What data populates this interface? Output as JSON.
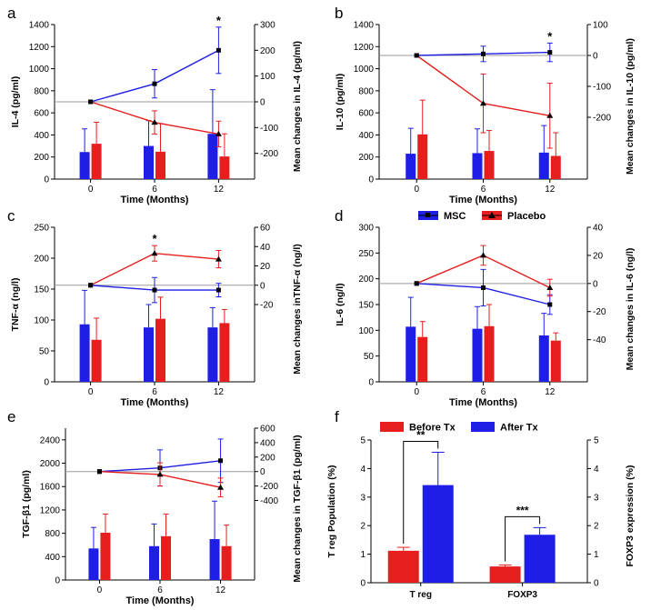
{
  "colors": {
    "msc": "#1e1ee6",
    "placebo": "#e61e1e",
    "axis": "#000000",
    "ref_line": "#9a9a9a"
  },
  "legend_cd": {
    "msc": "MSC",
    "placebo": "Placebo"
  },
  "chart_data": [
    {
      "panel": "a",
      "type": "bar+line",
      "xlabel": "Time (Months)",
      "ylabel": "IL-4 (pg/ml)",
      "y2label": "Mean changes in IL-4 (pg/ml)",
      "categories": [
        "0",
        "6",
        "12"
      ],
      "ylim": [
        0,
        1400
      ],
      "yticks": [
        0,
        200,
        400,
        600,
        800,
        1000,
        1200,
        1400
      ],
      "y2lim": [
        -300,
        300
      ],
      "y2ticks": [
        "-200",
        "-100",
        "0",
        "100",
        "200",
        "300"
      ],
      "bars": {
        "msc": [
          245,
          300,
          410
        ],
        "placebo": [
          320,
          248,
          205
        ]
      },
      "bar_err": {
        "msc": [
          210,
          230,
          400
        ],
        "placebo": [
          195,
          255,
          205
        ]
      },
      "lines": {
        "msc": [
          0,
          70,
          200
        ],
        "placebo": [
          0,
          -80,
          -125
        ]
      },
      "line_err": {
        "msc": [
          0,
          55,
          90
        ],
        "placebo": [
          0,
          45,
          50
        ]
      },
      "annotations": [
        {
          "text": "*",
          "x": "12"
        }
      ]
    },
    {
      "panel": "b",
      "type": "bar+line",
      "xlabel": "Time (Months)",
      "ylabel": "IL-10 (pg/ml)",
      "y2label": "Mean changes in IL-10 (pg/ml)",
      "categories": [
        "0",
        "6",
        "12"
      ],
      "ylim": [
        0,
        1400
      ],
      "yticks": [
        0,
        200,
        400,
        600,
        800,
        1000,
        1200,
        1400
      ],
      "y2lim": [
        -400,
        100
      ],
      "y2ticks": [
        "-200",
        "-100",
        "0",
        "100"
      ],
      "bars": {
        "msc": [
          230,
          235,
          240
        ],
        "placebo": [
          405,
          255,
          210
        ]
      },
      "bar_err": {
        "msc": [
          230,
          220,
          245
        ],
        "placebo": [
          310,
          185,
          210
        ]
      },
      "lines": {
        "msc": [
          0,
          5,
          10
        ],
        "placebo": [
          0,
          -155,
          -195
        ]
      },
      "line_err": {
        "msc": [
          0,
          25,
          30
        ],
        "placebo": [
          0,
          95,
          105
        ]
      },
      "annotations": [
        {
          "text": "*",
          "x": "12"
        }
      ]
    },
    {
      "panel": "c",
      "type": "bar+line",
      "xlabel": "Time (Months)",
      "ylabel": "TNF-α (ng/l)",
      "y2label": "Mean changes inTNF-α (ng/l)",
      "categories": [
        "0",
        "6",
        "12"
      ],
      "ylim": [
        0,
        250
      ],
      "yticks": [
        0,
        50,
        100,
        150,
        200,
        250
      ],
      "y2lim": [
        -100,
        60
      ],
      "y2ticks": [
        "-20",
        "0",
        "20",
        "40",
        "60"
      ],
      "bars": {
        "msc": [
          93,
          88,
          88
        ],
        "placebo": [
          68,
          102,
          95
        ]
      },
      "bar_err": {
        "msc": [
          55,
          37,
          32
        ],
        "placebo": [
          35,
          35,
          22
        ]
      },
      "lines": {
        "msc": [
          0,
          -5,
          -5
        ],
        "placebo": [
          0,
          33,
          27
        ]
      },
      "line_err": {
        "msc": [
          0,
          13,
          7
        ],
        "placebo": [
          0,
          8,
          9
        ]
      },
      "annotations": [
        {
          "text": "*",
          "x": "6"
        }
      ]
    },
    {
      "panel": "d",
      "type": "bar+line",
      "xlabel": "Time (Months)",
      "ylabel": "IL-6 (ng/l)",
      "y2label": "Mean changes in IL-6 (ng/l)",
      "categories": [
        "0",
        "6",
        "12"
      ],
      "ylim": [
        0,
        300
      ],
      "yticks": [
        0,
        50,
        100,
        150,
        200,
        250,
        300
      ],
      "y2lim": [
        -70,
        40
      ],
      "y2ticks": [
        "-40",
        "-20",
        "0",
        "20",
        "40"
      ],
      "bars": {
        "msc": [
          107,
          103,
          90
        ],
        "placebo": [
          87,
          108,
          80
        ]
      },
      "bar_err": {
        "msc": [
          57,
          43,
          43
        ],
        "placebo": [
          30,
          42,
          15
        ]
      },
      "lines": {
        "msc": [
          0,
          -3,
          -15
        ],
        "placebo": [
          0,
          20,
          -3
        ]
      },
      "line_err": {
        "msc": [
          0,
          13,
          7
        ],
        "placebo": [
          0,
          7,
          6
        ]
      },
      "annotations": []
    },
    {
      "panel": "e",
      "type": "bar+line",
      "xlabel": "Time (Months)",
      "ylabel": "TGF-β1 (pg/ml)",
      "y2label": "Mean changes in TGF-β1 (pg/ml)",
      "categories": [
        "0",
        "6",
        "12"
      ],
      "ylim": [
        0,
        2600
      ],
      "yticks": [
        0,
        400,
        800,
        1200,
        1600,
        2000,
        2400
      ],
      "y2lim": [
        -1500,
        600
      ],
      "y2ticks": [
        "-400",
        "-200",
        "0",
        "200",
        "400",
        "600"
      ],
      "bars": {
        "msc": [
          540,
          580,
          700
        ],
        "placebo": [
          810,
          750,
          580
        ]
      },
      "bar_err": {
        "msc": [
          360,
          380,
          650
        ],
        "placebo": [
          320,
          380,
          360
        ]
      },
      "lines": {
        "msc": [
          0,
          50,
          150
        ],
        "placebo": [
          0,
          -40,
          -220
        ]
      },
      "line_err": {
        "msc": [
          0,
          250,
          300
        ],
        "placebo": [
          0,
          160,
          130
        ]
      },
      "annotations": []
    },
    {
      "panel": "f",
      "type": "bar",
      "xlabel": "",
      "ylabel": "T reg Population (%)",
      "y2label": "FOXP3 expression (%)",
      "categories": [
        "T reg",
        "FOXP3"
      ],
      "ylim": [
        0,
        5
      ],
      "yticks": [
        0,
        1,
        2,
        3,
        4,
        5
      ],
      "y2ticks": [
        "0",
        "1",
        "2",
        "3",
        "4",
        "5"
      ],
      "legend": [
        "Before Tx",
        "After Tx"
      ],
      "series": [
        {
          "name": "Before Tx",
          "values": [
            1.12,
            0.57
          ],
          "err": [
            0.12,
            0.05
          ]
        },
        {
          "name": "After Tx",
          "values": [
            3.42,
            1.68
          ],
          "err": [
            1.15,
            0.25
          ]
        }
      ],
      "annotations": [
        {
          "text": "**",
          "x": "T reg"
        },
        {
          "text": "***",
          "x": "FOXP3"
        }
      ]
    }
  ]
}
